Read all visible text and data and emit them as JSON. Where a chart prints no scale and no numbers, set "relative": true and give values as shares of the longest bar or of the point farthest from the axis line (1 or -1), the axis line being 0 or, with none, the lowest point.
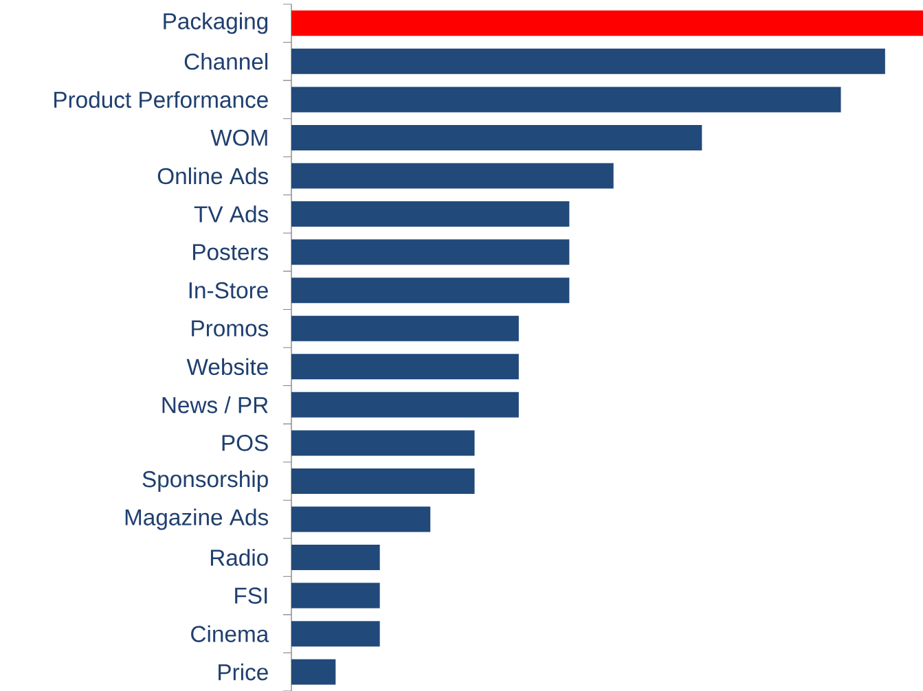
{
  "chart_data": {
    "type": "bar",
    "orientation": "horizontal",
    "relative": true,
    "categories": [
      "Packaging",
      "Channel",
      "Product Performance",
      "WOM",
      "Online Ads",
      "TV Ads",
      "Posters",
      "In-Store",
      "Promos",
      "Website",
      "News / PR",
      "POS",
      "Sponsorship",
      "Magazine Ads",
      "Radio",
      "FSI",
      "Cinema",
      "Price"
    ],
    "values": [
      1,
      0.94,
      0.87,
      0.65,
      0.51,
      0.44,
      0.44,
      0.44,
      0.36,
      0.36,
      0.36,
      0.29,
      0.29,
      0.22,
      0.14,
      0.14,
      0.14,
      0.07
    ],
    "colors": [
      "#ff0000",
      "#21497a",
      "#21497a",
      "#21497a",
      "#21497a",
      "#21497a",
      "#21497a",
      "#21497a",
      "#21497a",
      "#21497a",
      "#21497a",
      "#21497a",
      "#21497a",
      "#21497a",
      "#21497a",
      "#21497a",
      "#21497a",
      "#21497a"
    ]
  }
}
